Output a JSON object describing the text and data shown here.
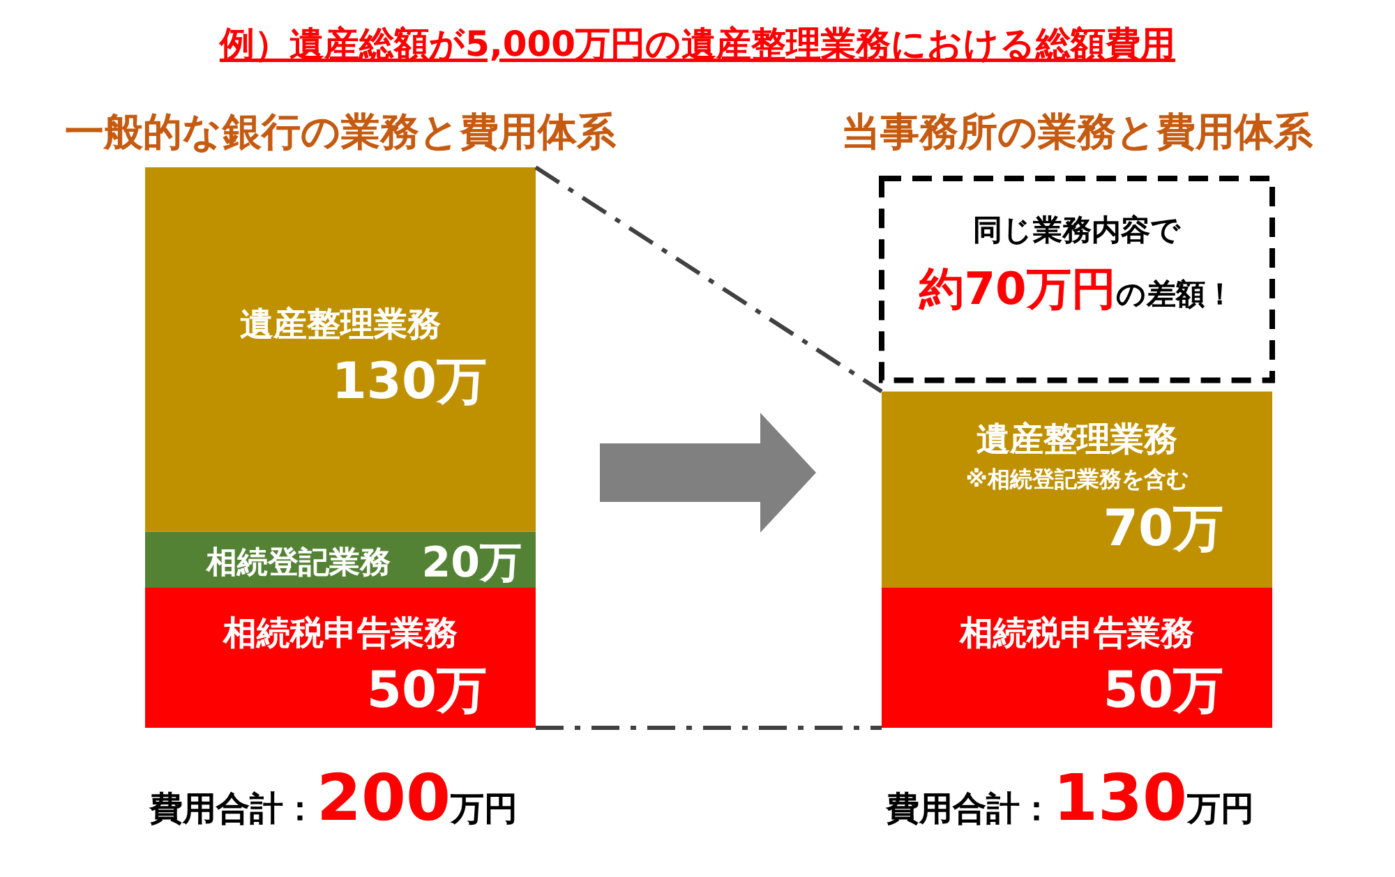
{
  "chart_data": {
    "type": "bar",
    "stacked": true,
    "title": "例）遺産総額が5,000万円の遺産整理業務における総額費用",
    "categories": [
      "一般的な銀行の業務と費用体系",
      "当事務所の業務と費用体系"
    ],
    "series": [
      {
        "name": "相続税申告業務",
        "color": "#ff0000",
        "values": [
          50,
          50
        ],
        "value_labels": [
          "50万",
          "50万"
        ]
      },
      {
        "name": "相続登記業務",
        "color": "#548235",
        "values": [
          20,
          null
        ],
        "value_labels": [
          "20万",
          null
        ]
      },
      {
        "name": "遺産整理業務",
        "color": "#bf9000",
        "values": [
          130,
          70
        ],
        "value_labels": [
          "130万",
          "70万"
        ]
      }
    ],
    "annotations": [
      "※相続登記業務を含む",
      "同じ業務内容で**約70万円**の差額！",
      {
        "text": "費用合計：**200**万円",
        "x": "一般的な銀行の業務と費用体系",
        "y": 0
      },
      {
        "text": "費用合計：**130**万円",
        "x": "当事務所の業務と費用体系",
        "y": 0
      }
    ]
  }
}
